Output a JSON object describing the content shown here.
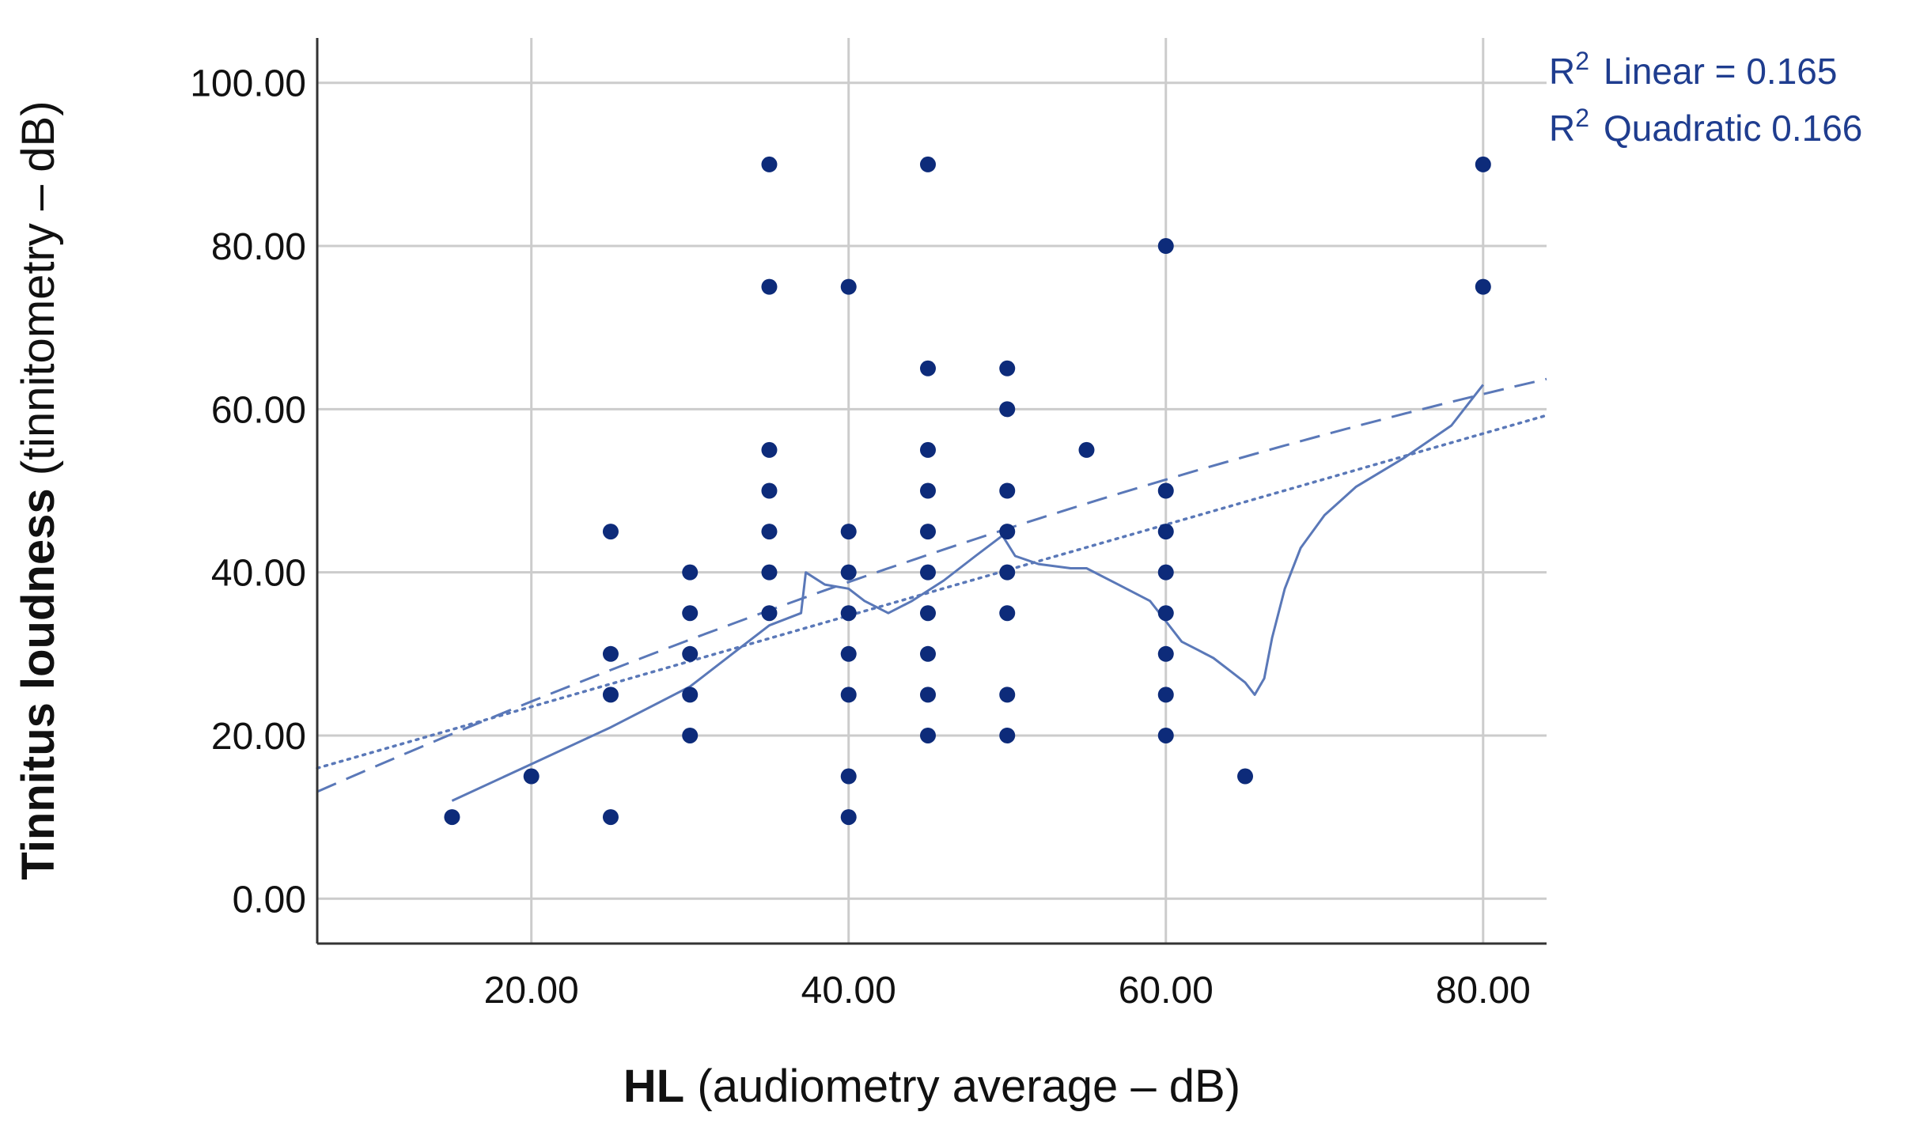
{
  "chart_data": {
    "type": "scatter",
    "title": "",
    "xlabel_bold": "HL",
    "xlabel_rest": "(audiometry average – dB)",
    "ylabel_bold": "Tinnitus loudness",
    "ylabel_rest": "(tinnitometry – dB)",
    "xlim": [
      6.5,
      84.0
    ],
    "ylim": [
      -5.5,
      105.5
    ],
    "x_ticks": [
      20,
      40,
      60,
      80
    ],
    "y_ticks": [
      0,
      20,
      40,
      60,
      80,
      100
    ],
    "x_tick_labels": [
      "20.00",
      "40.00",
      "60.00",
      "80.00"
    ],
    "y_tick_labels": [
      "0.00",
      "20.00",
      "40.00",
      "60.00",
      "80.00",
      "100.00"
    ],
    "grid": true,
    "legend_position": "top-right",
    "legend": {
      "linear_prefix": "R",
      "linear_sup": "2",
      "linear_text": "Linear = 0.165",
      "quadratic_prefix": "R",
      "quadratic_sup": "2",
      "quadratic_text": "Quadratic 0.166"
    },
    "colors": {
      "points": "#0d2b7a",
      "fit_lines": "#5a78b8",
      "grid": "#cccccc",
      "axes": "#333333",
      "legend_text": "#1f3d8f"
    },
    "points": [
      {
        "x": 15,
        "y": 10
      },
      {
        "x": 20,
        "y": 15
      },
      {
        "x": 25,
        "y": 10
      },
      {
        "x": 25,
        "y": 25
      },
      {
        "x": 25,
        "y": 30
      },
      {
        "x": 25,
        "y": 45
      },
      {
        "x": 30,
        "y": 20
      },
      {
        "x": 30,
        "y": 25
      },
      {
        "x": 30,
        "y": 30
      },
      {
        "x": 30,
        "y": 35
      },
      {
        "x": 30,
        "y": 40
      },
      {
        "x": 35,
        "y": 35
      },
      {
        "x": 35,
        "y": 40
      },
      {
        "x": 35,
        "y": 45
      },
      {
        "x": 35,
        "y": 50
      },
      {
        "x": 35,
        "y": 55
      },
      {
        "x": 35,
        "y": 75
      },
      {
        "x": 35,
        "y": 90
      },
      {
        "x": 40,
        "y": 10
      },
      {
        "x": 40,
        "y": 15
      },
      {
        "x": 40,
        "y": 25
      },
      {
        "x": 40,
        "y": 30
      },
      {
        "x": 40,
        "y": 35
      },
      {
        "x": 40,
        "y": 40
      },
      {
        "x": 40,
        "y": 45
      },
      {
        "x": 40,
        "y": 75
      },
      {
        "x": 45,
        "y": 20
      },
      {
        "x": 45,
        "y": 25
      },
      {
        "x": 45,
        "y": 30
      },
      {
        "x": 45,
        "y": 35
      },
      {
        "x": 45,
        "y": 40
      },
      {
        "x": 45,
        "y": 45
      },
      {
        "x": 45,
        "y": 50
      },
      {
        "x": 45,
        "y": 55
      },
      {
        "x": 45,
        "y": 65
      },
      {
        "x": 45,
        "y": 90
      },
      {
        "x": 50,
        "y": 20
      },
      {
        "x": 50,
        "y": 25
      },
      {
        "x": 50,
        "y": 35
      },
      {
        "x": 50,
        "y": 40
      },
      {
        "x": 50,
        "y": 45
      },
      {
        "x": 50,
        "y": 50
      },
      {
        "x": 50,
        "y": 60
      },
      {
        "x": 50,
        "y": 65
      },
      {
        "x": 55,
        "y": 55
      },
      {
        "x": 60,
        "y": 20
      },
      {
        "x": 60,
        "y": 25
      },
      {
        "x": 60,
        "y": 30
      },
      {
        "x": 60,
        "y": 35
      },
      {
        "x": 60,
        "y": 40
      },
      {
        "x": 60,
        "y": 45
      },
      {
        "x": 60,
        "y": 50
      },
      {
        "x": 60,
        "y": 80
      },
      {
        "x": 65,
        "y": 15
      },
      {
        "x": 80,
        "y": 75
      },
      {
        "x": 80,
        "y": 90
      }
    ],
    "fits": {
      "linear": {
        "intercept": 12.37,
        "slope": 0.558
      },
      "quadratic": {
        "c0": 7.45,
        "c1": 0.888,
        "c2": -0.0026
      },
      "loess": [
        [
          15,
          12
        ],
        [
          20,
          16.5
        ],
        [
          25,
          21
        ],
        [
          30,
          26
        ],
        [
          33,
          30.5
        ],
        [
          35,
          33.5
        ],
        [
          37,
          35
        ],
        [
          37.3,
          40
        ],
        [
          38.5,
          38.5
        ],
        [
          40,
          38
        ],
        [
          41,
          36.5
        ],
        [
          42.5,
          35
        ],
        [
          44,
          36.5
        ],
        [
          46,
          39
        ],
        [
          48,
          42
        ],
        [
          49.7,
          44.5
        ],
        [
          50.5,
          42
        ],
        [
          52,
          41
        ],
        [
          54,
          40.5
        ],
        [
          55,
          40.5
        ],
        [
          57,
          38.5
        ],
        [
          59,
          36.5
        ],
        [
          60,
          34
        ],
        [
          61,
          31.5
        ],
        [
          62,
          30.5
        ],
        [
          63,
          29.5
        ],
        [
          64,
          28
        ],
        [
          65,
          26.5
        ],
        [
          65.6,
          25
        ],
        [
          66.2,
          27
        ],
        [
          66.7,
          32
        ],
        [
          67.5,
          38
        ],
        [
          68.5,
          43
        ],
        [
          70,
          47
        ],
        [
          72,
          50.5
        ],
        [
          75,
          54
        ],
        [
          78,
          58
        ],
        [
          80,
          63
        ]
      ]
    }
  }
}
